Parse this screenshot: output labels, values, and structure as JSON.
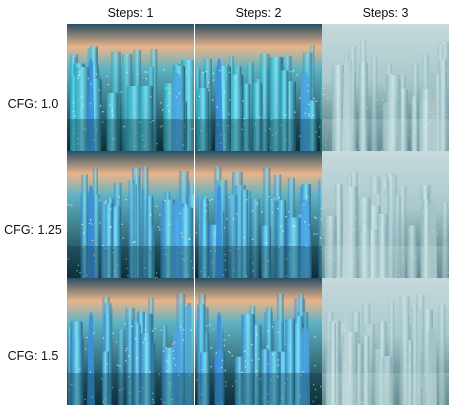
{
  "grid": {
    "columns": [
      {
        "label": "Steps: 1"
      },
      {
        "label": "Steps: 2"
      },
      {
        "label": "Steps: 3"
      }
    ],
    "rows": [
      {
        "label": "CFG: 1.0"
      },
      {
        "label": "CFG: 1.25"
      },
      {
        "label": "CFG: 1.5"
      }
    ]
  },
  "image_subject": "futuristic-city-skyline",
  "colors": {
    "teal": "#1f9fb0",
    "cyan_glow": "#7ee8ff",
    "sky_warm": "#e8b48a",
    "haze": "#a9c9cc",
    "dark": "#0d2a33"
  }
}
